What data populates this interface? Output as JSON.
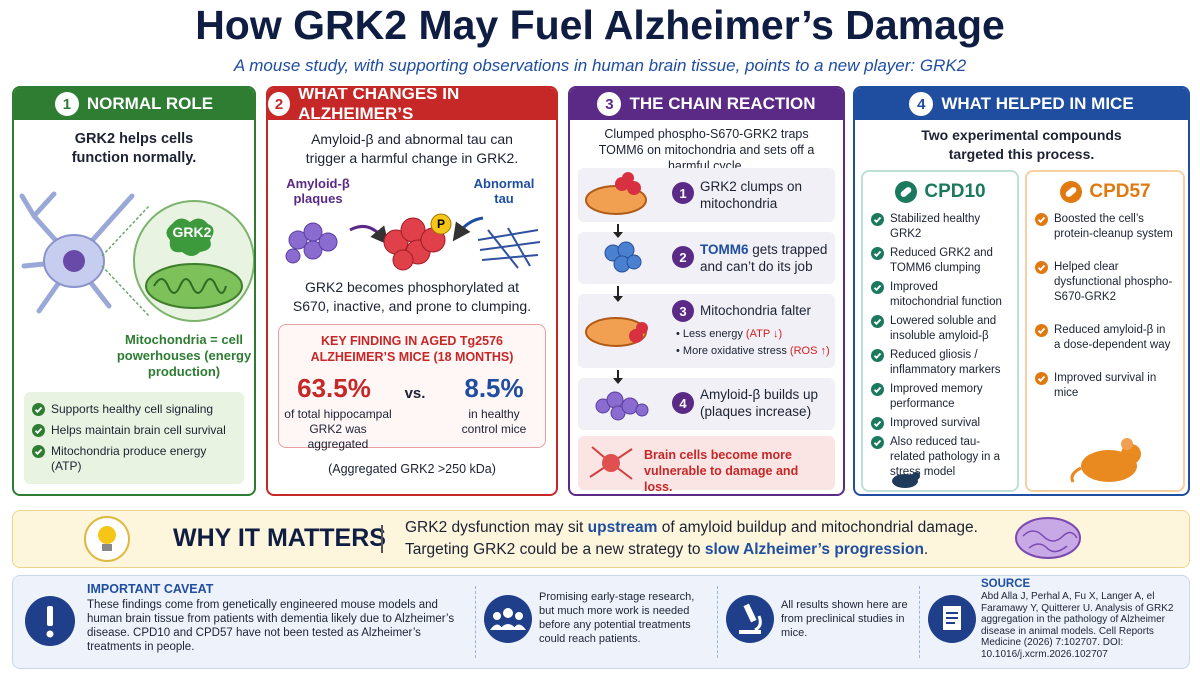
{
  "header": {
    "title": "How GRK2 May Fuel Alzheimer’s Damage",
    "subtitle": "A mouse study, with supporting observations in human brain tissue, points to a new player: GRK2"
  },
  "panels": [
    {
      "number": "1",
      "title": "NORMAL ROLE",
      "lead": "GRK2 helps cells function normally.",
      "grk2_label": "GRK2",
      "caption": "Mitochondria = cell powerhouses (energy production)",
      "bullets": [
        "Supports healthy cell signaling",
        "Helps maintain brain cell survival",
        "Mitochondria produce energy (ATP)"
      ]
    },
    {
      "number": "2",
      "title": "WHAT CHANGES IN ALZHEIMER’S",
      "lead": "Amyloid-β and abnormal tau can trigger a harmful change in GRK2.",
      "amyloid_label": "Amyloid-β plaques",
      "tau_label": "Abnormal tau",
      "phospho_label": "P",
      "result": "GRK2 becomes phosphorylated at S670, inactive, and prone to clumping.",
      "key_finding": {
        "title": "KEY FINDING IN AGED Tg2576 ALZHEIMER’S MICE (18 MONTHS)",
        "stat1": "63.5%",
        "stat1_text": "of total hippocampal GRK2 was aggregated",
        "vs": "vs.",
        "stat2": "8.5%",
        "stat2_text": "in healthy control mice"
      },
      "note": "(Aggregated GRK2 >250 kDa)"
    },
    {
      "number": "3",
      "title": "THE CHAIN REACTION",
      "lead": "Clumped phospho-S670-GRK2 traps TOMM6 on mitochondria and sets off a harmful cycle.",
      "steps": [
        {
          "number": "1",
          "text": "GRK2 clumps on mitochondria"
        },
        {
          "number": "2",
          "highlight": "TOMM6",
          "text": "gets trapped and can’t do its job"
        },
        {
          "number": "3",
          "text": "Mitochondria falter",
          "subs": [
            {
              "text": "Less energy",
              "note": "(ATP ↓)"
            },
            {
              "text": "More oxidative stress",
              "note": "(ROS ↑)"
            }
          ]
        },
        {
          "number": "4",
          "text": "Amyloid-β builds up (plaques increase)"
        }
      ],
      "warning": "Brain cells become more vulnerable to damage and loss."
    },
    {
      "number": "4",
      "title": "WHAT HELPED IN MICE",
      "lead": "Two experimental compounds targeted this process.",
      "compounds": [
        {
          "name": "CPD10",
          "items": [
            "Stabilized healthy GRK2",
            "Reduced GRK2 and TOMM6 clumping",
            "Improved mitochondrial function",
            "Lowered soluble and insoluble amyloid-β",
            "Reduced gliosis / inflammatory markers",
            "Improved memory performance",
            "Improved survival",
            "Also reduced tau-related pathology in a stress model"
          ]
        },
        {
          "name": "CPD57",
          "items": [
            "Boosted the cell’s protein-cleanup system",
            "Helped clear dysfunctional phospho-S670-GRK2",
            "Reduced amyloid-β in a dose-dependent way",
            "Improved survival in mice"
          ]
        }
      ]
    }
  ],
  "why": {
    "title": "WHY IT MATTERS",
    "line1": [
      "GRK2 dysfunction may sit",
      "upstream",
      "of amyloid buildup and mitochondrial damage."
    ],
    "line2": [
      "Targeting GRK2 could be a new strategy to",
      "slow Alzheimer’s progression",
      "."
    ]
  },
  "footer": {
    "caveat_title": "IMPORTANT CAVEAT",
    "caveat_text": "These findings come from genetically engineered mouse models and human brain tissue from patients with dementia likely due to Alzheimer’s disease. CPD10 and CPD57 have not been tested as Alzheimer’s treatments in people.",
    "note1": "Promising early-stage research, but much more work is needed before any potential treatments could reach patients.",
    "note2": "All results shown here are from preclinical studies in mice.",
    "source_title": "SOURCE",
    "source_text": "Abd Alla J, Perhal A, Fu X, Langer A, el Faramawy Y, Quitterer U. Analysis of GRK2 aggregation in the pathology of Alzheimer disease in animal models. Cell Reports Medicine (2026) 7:102707. DOI: 10.1016/j.xcrm.2026.102707"
  }
}
